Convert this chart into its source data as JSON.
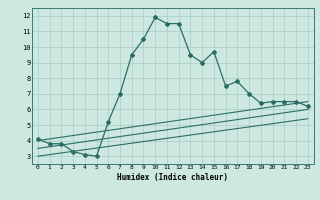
{
  "xlabel": "Humidex (Indice chaleur)",
  "bg_color": "#cde8e0",
  "line_color": "#2a6e63",
  "grid_color": "#aed0c8",
  "xlim": [
    -0.5,
    23.5
  ],
  "ylim": [
    2.5,
    12.5
  ],
  "xticks": [
    0,
    1,
    2,
    3,
    4,
    5,
    6,
    7,
    8,
    9,
    10,
    11,
    12,
    13,
    14,
    15,
    16,
    17,
    18,
    19,
    20,
    21,
    22,
    23
  ],
  "yticks": [
    3,
    4,
    5,
    6,
    7,
    8,
    9,
    10,
    11,
    12
  ],
  "main_x": [
    0,
    1,
    2,
    3,
    4,
    5,
    6,
    7,
    8,
    9,
    10,
    11,
    12,
    13,
    14,
    15,
    16,
    17,
    18,
    19,
    20,
    21,
    22,
    23
  ],
  "main_y": [
    4.1,
    3.8,
    3.8,
    3.3,
    3.1,
    3.0,
    5.2,
    7.0,
    9.5,
    10.5,
    11.9,
    11.5,
    11.5,
    9.5,
    9.0,
    9.7,
    7.5,
    7.8,
    7.0,
    6.4,
    6.5,
    6.5,
    6.5,
    6.2
  ],
  "line2_x": [
    0,
    23
  ],
  "line2_y": [
    4.0,
    6.5
  ],
  "line3_x": [
    0,
    23
  ],
  "line3_y": [
    3.5,
    6.0
  ],
  "line4_x": [
    0,
    23
  ],
  "line4_y": [
    3.0,
    5.4
  ]
}
